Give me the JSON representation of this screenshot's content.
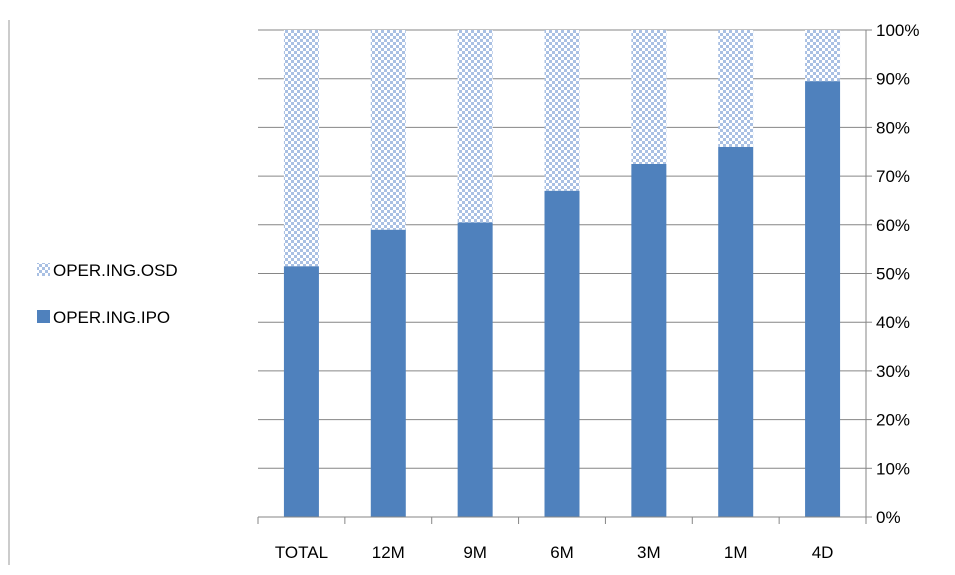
{
  "chart_data": {
    "type": "bar",
    "stacked": true,
    "percent_stacked": true,
    "categories": [
      "TOTAL",
      "12M",
      "9M",
      "6M",
      "3M",
      "1M",
      "4D"
    ],
    "series": [
      {
        "name": "OPER.ING.IPO",
        "values": [
          51.5,
          59,
          60.5,
          67,
          72.5,
          76,
          89.5
        ],
        "color": "#4F81BD",
        "pattern": "solid"
      },
      {
        "name": "OPER.ING.OSD",
        "values": [
          48.5,
          41,
          39.5,
          33,
          27.5,
          24,
          10.5
        ],
        "color": "#4F81BD",
        "pattern": "checkered"
      }
    ],
    "y_axis": {
      "position": "right",
      "ticks": [
        "0%",
        "10%",
        "20%",
        "30%",
        "40%",
        "50%",
        "60%",
        "70%",
        "80%",
        "90%",
        "100%"
      ],
      "ylim": [
        0,
        100
      ]
    },
    "grid": true,
    "legend": {
      "placement": "left",
      "entries": [
        "OPER.ING.OSD",
        "OPER.ING.IPO"
      ]
    }
  }
}
